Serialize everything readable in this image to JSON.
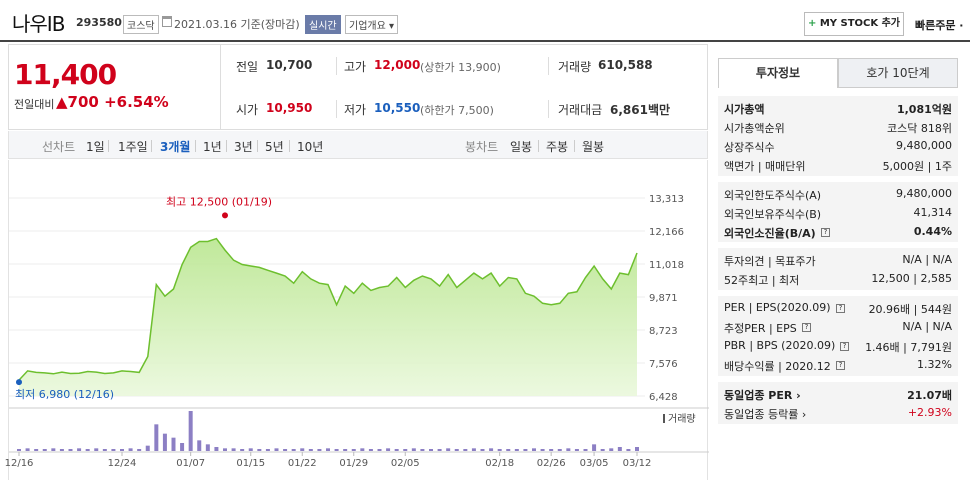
{
  "header": {
    "name": "나우IB",
    "code": "293580",
    "market": "코스닥",
    "date_text": "2021.03.16 기준(장마감)",
    "realtime": "실시간",
    "company_info": "기업개요 ▾",
    "mystock_label": "MY STOCK 추가",
    "mystock_plus": "+",
    "order_label": "빠른주문 ·"
  },
  "quote": {
    "price": "11,400",
    "change_label": "전일대비",
    "change_arrow": "▲",
    "change_amount": "700",
    "change_pct": "+6.54%",
    "prev_close_label": "전일",
    "prev_close": "10,700",
    "open_label": "시가",
    "open": "10,950",
    "high_label": "고가",
    "high": "12,000",
    "upper_limit": "(상한가 13,900)",
    "low_label": "저가",
    "low": "10,550",
    "lower_limit": "(하한가 7,500)",
    "volume_label": "거래량",
    "volume": "610,588",
    "amount_label": "거래대금",
    "amount": "6,861",
    "amount_unit": "백만"
  },
  "period_bar": {
    "line_label": "선차트",
    "line_periods": [
      "1일",
      "1주일",
      "3개월",
      "1년",
      "3년",
      "5년",
      "10년"
    ],
    "selected": "3개월",
    "candle_label": "봉차트",
    "candle_periods": [
      "일봉",
      "주봉",
      "월봉"
    ]
  },
  "chart_data": {
    "type": "area",
    "y_ticks": [
      "13,313",
      "12,166",
      "11,018",
      "9,871",
      "8,723",
      "7,576",
      "6,428"
    ],
    "ylim": [
      6428,
      13313
    ],
    "x_labels": [
      "12/16",
      "12/24",
      "01/07",
      "01/15",
      "01/22",
      "01/29",
      "02/05",
      "02/18",
      "02/26",
      "03/05",
      "03/12"
    ],
    "max_label": "최고 12,500 (01/19)",
    "min_label": "최저 6,980 (12/16)",
    "volume_label": "거래량",
    "prices": [
      6980,
      7300,
      7250,
      7230,
      7200,
      7260,
      7210,
      7220,
      7280,
      7260,
      7210,
      7230,
      7300,
      7280,
      7250,
      7800,
      10300,
      9900,
      10150,
      11000,
      11600,
      11800,
      11800,
      11900,
      11500,
      11150,
      11000,
      10950,
      10900,
      10800,
      10700,
      10600,
      10350,
      10750,
      10500,
      10350,
      10300,
      9600,
      10250,
      10000,
      10350,
      10100,
      10200,
      10250,
      10550,
      10200,
      10450,
      10600,
      10500,
      10250,
      10650,
      10200,
      10450,
      10700,
      10500,
      10700,
      10250,
      10550,
      10500,
      10000,
      9900,
      9650,
      9600,
      9650,
      10000,
      10050,
      10550,
      10950,
      10500,
      10150,
      10700,
      10650,
      11400
    ],
    "volumes": [
      1,
      2,
      1,
      1,
      2,
      1,
      1,
      2,
      1,
      2,
      1,
      1,
      1,
      2,
      1,
      4,
      20,
      13,
      10,
      6,
      30,
      8,
      5,
      3,
      2,
      2,
      1,
      2,
      1,
      1,
      2,
      1,
      1,
      2,
      1,
      1,
      2,
      1,
      1,
      1,
      2,
      1,
      1,
      2,
      1,
      1,
      2,
      1,
      1,
      1,
      2,
      1,
      1,
      2,
      1,
      2,
      1,
      1,
      1,
      1,
      2,
      1,
      1,
      1,
      2,
      1,
      1,
      5,
      1,
      2,
      3,
      1,
      3
    ]
  },
  "right_panel": {
    "tab_info": "투자정보",
    "tab_quote": "호가 10단계",
    "g1": [
      {
        "label": "시가총액",
        "value": "1,081억원",
        "bold": true
      },
      {
        "label": "시가총액순위",
        "value": "코스닥 818위"
      },
      {
        "label": "상장주식수",
        "value": "9,480,000"
      },
      {
        "label": "액면가 | 매매단위",
        "value": "5,000원 | 1주"
      }
    ],
    "g2": [
      {
        "label": "외국인한도주식수(A)",
        "value": "9,480,000"
      },
      {
        "label": "외국인보유주식수(B)",
        "value": "41,314"
      },
      {
        "label": "외국인소진율(B/A)",
        "value": "0.44%",
        "bold": true,
        "icon": "?"
      }
    ],
    "g3": [
      {
        "label": "투자의견 | 목표주가",
        "value": "N/A | N/A"
      },
      {
        "label": "52주최고 | 최저",
        "value": "12,500 | 2,585"
      }
    ],
    "g4": [
      {
        "label": "PER | EPS(2020.09)",
        "value": "20.96배 | 544원",
        "icon": "?"
      },
      {
        "label": "추정PER | EPS",
        "value": "N/A | N/A",
        "icon": "?"
      },
      {
        "label": "PBR | BPS (2020.09)",
        "value": "1.46배 | 7,791원",
        "icon": "?"
      },
      {
        "label": "배당수익률 | 2020.12",
        "value": "1.32%",
        "icon": "?"
      }
    ],
    "g5": [
      {
        "label": "동일업종 PER ›",
        "value": "21.07배",
        "bold": true
      },
      {
        "label": "동일업종 등락률 ›",
        "value": "+2.93%",
        "red": true
      }
    ]
  },
  "colors": {
    "up": "#d0021b",
    "down": "#1b5fbd",
    "line": "#7cc93b",
    "fill": "#d9f2c1",
    "volume": "#8c7fc4"
  }
}
